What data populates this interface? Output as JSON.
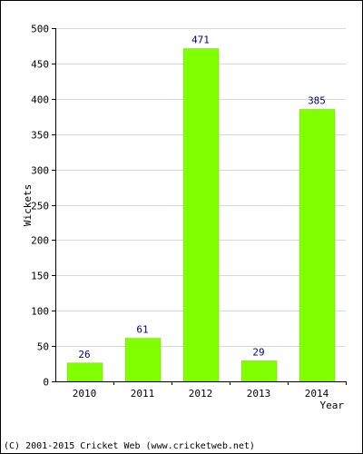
{
  "chart_data": {
    "type": "bar",
    "categories": [
      "2010",
      "2011",
      "2012",
      "2013",
      "2014"
    ],
    "values": [
      26,
      61,
      471,
      29,
      385
    ],
    "data_labels": [
      "26",
      "61",
      "471",
      "29",
      "385"
    ],
    "title": "",
    "xlabel": "Year",
    "ylabel": "Wickets",
    "ylim": [
      0,
      500
    ],
    "yticks": [
      "0",
      "50",
      "100",
      "150",
      "200",
      "250",
      "300",
      "350",
      "400",
      "450",
      "500"
    ],
    "grid": true,
    "bar_color": "#80ff00",
    "bar_edge_color": "#7fcf00",
    "label_color": "#000080"
  },
  "footer": {
    "copyright": "(C) 2001-2015 Cricket Web (www.cricketweb.net)"
  }
}
